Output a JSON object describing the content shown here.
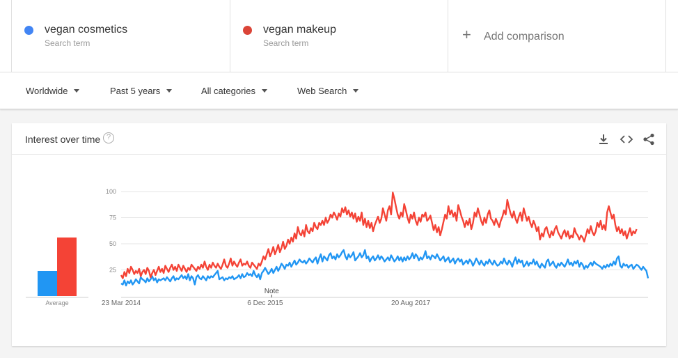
{
  "terms": [
    {
      "name": "vegan cosmetics",
      "sub": "Search term",
      "color": "#4285f4"
    },
    {
      "name": "vegan makeup",
      "sub": "Search term",
      "color": "#db4437"
    }
  ],
  "add_comparison": "Add comparison",
  "filters": {
    "region": "Worldwide",
    "time": "Past 5 years",
    "category": "All categories",
    "property": "Web Search"
  },
  "card": {
    "title": "Interest over time",
    "icons": [
      "help-icon",
      "download-icon",
      "embed-icon",
      "share-icon"
    ]
  },
  "chart_data": {
    "type": "line",
    "colors": {
      "vegan cosmetics": "#2196f3",
      "vegan makeup": "#f44336"
    },
    "ylim": [
      0,
      100
    ],
    "yticks": [
      "100",
      "75",
      "50",
      "25"
    ],
    "xtick_labels": [
      {
        "label": "23 Mar 2014",
        "index": 0
      },
      {
        "label": "6 Dec 2015",
        "index": 88
      },
      {
        "label": "20 Aug 2017",
        "index": 177
      }
    ],
    "note": {
      "label": "Note",
      "index": 92
    },
    "average_label": "Average",
    "averages": {
      "vegan cosmetics": 24,
      "vegan makeup": 56
    },
    "series": [
      {
        "name": "vegan cosmetics",
        "values": [
          12,
          11,
          15,
          10,
          14,
          12,
          15,
          11,
          13,
          16,
          14,
          12,
          18,
          16,
          15,
          13,
          17,
          14,
          16,
          19,
          15,
          17,
          13,
          16,
          15,
          16,
          17,
          15,
          18,
          16,
          14,
          17,
          19,
          15,
          17,
          16,
          18,
          20,
          17,
          19,
          16,
          21,
          15,
          19,
          17,
          11,
          18,
          20,
          17,
          16,
          19,
          17,
          15,
          19,
          17,
          19,
          18,
          20,
          22,
          24,
          16,
          17,
          18,
          15,
          17,
          16,
          18,
          17,
          19,
          16,
          17,
          18,
          20,
          17,
          21,
          18,
          19,
          22,
          20,
          21,
          19,
          24,
          20,
          18,
          21,
          16,
          22,
          24,
          27,
          24,
          21,
          23,
          26,
          22,
          25,
          28,
          24,
          27,
          31,
          29,
          26,
          30,
          29,
          32,
          28,
          31,
          34,
          30,
          32,
          35,
          33,
          32,
          34,
          31,
          33,
          36,
          34,
          32,
          35,
          37,
          31,
          36,
          40,
          33,
          38,
          36,
          34,
          39,
          41,
          36,
          38,
          35,
          40,
          37,
          39,
          42,
          44,
          38,
          35,
          40,
          37,
          39,
          42,
          34,
          36,
          38,
          41,
          37,
          39,
          44,
          36,
          38,
          33,
          36,
          38,
          34,
          36,
          39,
          35,
          38,
          36,
          33,
          35,
          37,
          34,
          39,
          36,
          33,
          35,
          38,
          34,
          37,
          33,
          37,
          34,
          38,
          35,
          37,
          41,
          36,
          40,
          38,
          34,
          37,
          35,
          38,
          43,
          36,
          38,
          35,
          39,
          38,
          36,
          40,
          37,
          34,
          36,
          38,
          33,
          35,
          37,
          32,
          34,
          36,
          31,
          34,
          36,
          33,
          35,
          30,
          32,
          34,
          31,
          35,
          33,
          29,
          32,
          36,
          33,
          30,
          34,
          31,
          29,
          33,
          31,
          35,
          32,
          30,
          34,
          31,
          29,
          30,
          33,
          31,
          36,
          32,
          30,
          34,
          32,
          28,
          33,
          37,
          31,
          35,
          32,
          34,
          28,
          30,
          33,
          29,
          32,
          31,
          35,
          30,
          33,
          29,
          27,
          31,
          29,
          27,
          33,
          35,
          29,
          31,
          33,
          29,
          27,
          31,
          29,
          32,
          30,
          28,
          31,
          35,
          30,
          32,
          29,
          33,
          31,
          34,
          28,
          32,
          30,
          26,
          29,
          27,
          30,
          32,
          29,
          33,
          31,
          30,
          29,
          28,
          26,
          29,
          27,
          30,
          28,
          31,
          29,
          33,
          30,
          36,
          38,
          29,
          27,
          31,
          29,
          30,
          27,
          29,
          30,
          26,
          28,
          30,
          29,
          27,
          25,
          28,
          26,
          24,
          17
        ]
      },
      {
        "name": "vegan makeup",
        "values": [
          20,
          17,
          23,
          19,
          26,
          22,
          28,
          25,
          21,
          24,
          22,
          26,
          19,
          23,
          25,
          21,
          27,
          24,
          18,
          22,
          25,
          20,
          24,
          28,
          23,
          26,
          22,
          29,
          26,
          23,
          27,
          30,
          25,
          28,
          24,
          30,
          27,
          24,
          29,
          26,
          23,
          27,
          25,
          30,
          28,
          26,
          24,
          28,
          26,
          30,
          27,
          33,
          28,
          25,
          30,
          27,
          32,
          29,
          27,
          31,
          28,
          26,
          30,
          35,
          29,
          27,
          31,
          36,
          29,
          33,
          30,
          28,
          32,
          35,
          29,
          31,
          30,
          33,
          29,
          27,
          32,
          30,
          28,
          26,
          31,
          29,
          33,
          38,
          35,
          40,
          45,
          38,
          42,
          47,
          40,
          44,
          49,
          42,
          46,
          52,
          45,
          48,
          54,
          50,
          56,
          52,
          60,
          55,
          66,
          60,
          58,
          63,
          57,
          68,
          62,
          60,
          65,
          62,
          70,
          66,
          64,
          70,
          68,
          72,
          68,
          75,
          70,
          73,
          78,
          75,
          80,
          77,
          73,
          79,
          76,
          84,
          80,
          85,
          78,
          82,
          76,
          80,
          74,
          79,
          71,
          76,
          72,
          80,
          68,
          74,
          66,
          72,
          65,
          70,
          62,
          68,
          72,
          76,
          70,
          74,
          84,
          78,
          72,
          82,
          86,
          78,
          99,
          93,
          85,
          78,
          74,
          80,
          76,
          88,
          82,
          75,
          70,
          78,
          74,
          80,
          72,
          68,
          75,
          71,
          78,
          76,
          80,
          72,
          74,
          77,
          70,
          63,
          68,
          61,
          66,
          58,
          64,
          71,
          78,
          74,
          86,
          78,
          82,
          76,
          80,
          72,
          87,
          82,
          76,
          72,
          66,
          72,
          68,
          74,
          64,
          70,
          80,
          76,
          84,
          78,
          72,
          68,
          75,
          70,
          78,
          82,
          74,
          72,
          68,
          74,
          70,
          66,
          72,
          76,
          82,
          78,
          92,
          85,
          79,
          75,
          81,
          74,
          70,
          76,
          80,
          72,
          84,
          78,
          72,
          76,
          70,
          66,
          72,
          68,
          62,
          66,
          54,
          60,
          57,
          64,
          66,
          60,
          56,
          62,
          58,
          64,
          67,
          61,
          58,
          55,
          60,
          63,
          57,
          62,
          55,
          58,
          56,
          65,
          60,
          58,
          54,
          58,
          56,
          52,
          58,
          64,
          60,
          67,
          61,
          58,
          62,
          70,
          66,
          72,
          64,
          68,
          63,
          80,
          86,
          80,
          74,
          78,
          68,
          62,
          66,
          60,
          64,
          58,
          62,
          55,
          60,
          65,
          58,
          62,
          60,
          64
        ]
      }
    ]
  }
}
